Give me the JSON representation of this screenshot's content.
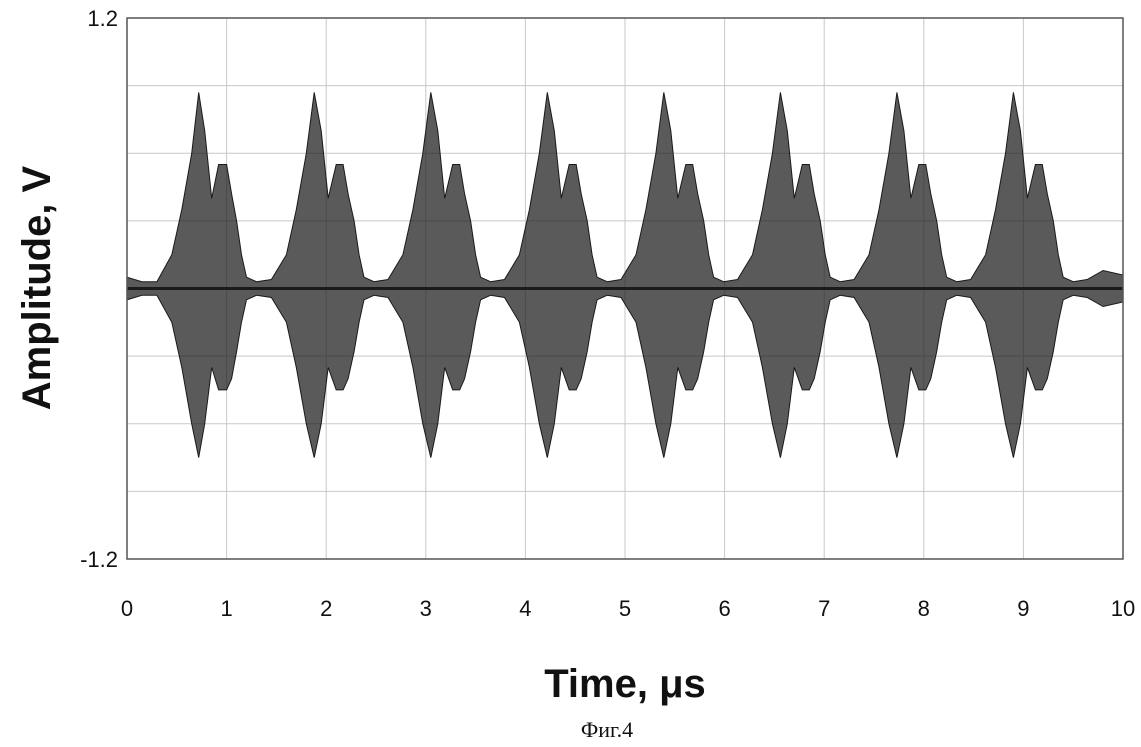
{
  "chart_data": {
    "type": "line",
    "xlabel": "Time, μs",
    "ylabel": "Amplitude, V",
    "xlim": [
      0,
      10
    ],
    "ylim": [
      -1.2,
      1.2
    ],
    "x_ticks": [
      "0",
      "1",
      "2",
      "3",
      "4",
      "5",
      "6",
      "7",
      "8",
      "9",
      "10"
    ],
    "y_ticks": [
      "1.2",
      "-1.2"
    ],
    "grid": true,
    "series": [
      {
        "color": "#1a1a1a",
        "envelope": {
          "x": [
            0.0,
            0.15,
            0.3,
            0.45,
            0.55,
            0.65,
            0.72,
            0.78,
            0.85,
            0.92,
            1.0,
            1.05,
            1.1,
            1.15,
            1.2,
            1.3,
            1.45,
            1.6,
            1.7,
            1.8,
            1.88,
            1.95,
            2.02,
            2.1,
            2.17,
            2.22,
            2.28,
            2.33,
            2.38,
            2.48,
            2.62,
            2.77,
            2.87,
            2.97,
            3.05,
            3.12,
            3.19,
            3.27,
            3.34,
            3.39,
            3.45,
            3.5,
            3.55,
            3.65,
            3.79,
            3.94,
            4.04,
            4.14,
            4.22,
            4.29,
            4.36,
            4.44,
            4.51,
            4.56,
            4.62,
            4.67,
            4.72,
            4.82,
            4.96,
            5.11,
            5.21,
            5.31,
            5.39,
            5.46,
            5.53,
            5.61,
            5.68,
            5.73,
            5.79,
            5.84,
            5.89,
            5.99,
            6.13,
            6.28,
            6.38,
            6.48,
            6.56,
            6.63,
            6.7,
            6.78,
            6.85,
            6.9,
            6.96,
            7.01,
            7.06,
            7.16,
            7.3,
            7.45,
            7.55,
            7.65,
            7.73,
            7.8,
            7.87,
            7.95,
            8.02,
            8.07,
            8.13,
            8.18,
            8.23,
            8.33,
            8.47,
            8.62,
            8.72,
            8.82,
            8.9,
            8.97,
            9.04,
            9.12,
            9.19,
            9.24,
            9.3,
            9.35,
            9.4,
            9.5,
            9.64,
            9.8,
            10.0
          ],
          "upper": [
            0.05,
            0.03,
            0.03,
            0.15,
            0.35,
            0.6,
            0.87,
            0.7,
            0.4,
            0.55,
            0.55,
            0.42,
            0.3,
            0.15,
            0.05,
            0.03,
            0.04,
            0.15,
            0.35,
            0.6,
            0.87,
            0.7,
            0.4,
            0.55,
            0.55,
            0.42,
            0.3,
            0.15,
            0.05,
            0.03,
            0.04,
            0.15,
            0.35,
            0.6,
            0.87,
            0.7,
            0.4,
            0.55,
            0.55,
            0.42,
            0.3,
            0.15,
            0.05,
            0.03,
            0.04,
            0.15,
            0.35,
            0.6,
            0.87,
            0.7,
            0.4,
            0.55,
            0.55,
            0.42,
            0.3,
            0.15,
            0.05,
            0.03,
            0.04,
            0.15,
            0.35,
            0.6,
            0.87,
            0.7,
            0.4,
            0.55,
            0.55,
            0.42,
            0.3,
            0.15,
            0.05,
            0.03,
            0.04,
            0.15,
            0.35,
            0.6,
            0.87,
            0.7,
            0.4,
            0.55,
            0.55,
            0.42,
            0.3,
            0.15,
            0.05,
            0.03,
            0.04,
            0.15,
            0.35,
            0.6,
            0.87,
            0.7,
            0.4,
            0.55,
            0.55,
            0.42,
            0.3,
            0.15,
            0.05,
            0.03,
            0.04,
            0.15,
            0.35,
            0.6,
            0.87,
            0.7,
            0.4,
            0.55,
            0.55,
            0.42,
            0.3,
            0.15,
            0.05,
            0.03,
            0.04,
            0.08,
            0.06
          ],
          "lower": [
            -0.05,
            -0.03,
            -0.03,
            -0.15,
            -0.35,
            -0.6,
            -0.75,
            -0.6,
            -0.35,
            -0.45,
            -0.45,
            -0.4,
            -0.28,
            -0.15,
            -0.05,
            -0.03,
            -0.04,
            -0.15,
            -0.35,
            -0.6,
            -0.75,
            -0.6,
            -0.35,
            -0.45,
            -0.45,
            -0.4,
            -0.28,
            -0.15,
            -0.05,
            -0.03,
            -0.04,
            -0.15,
            -0.35,
            -0.6,
            -0.75,
            -0.6,
            -0.35,
            -0.45,
            -0.45,
            -0.4,
            -0.28,
            -0.15,
            -0.05,
            -0.03,
            -0.04,
            -0.15,
            -0.35,
            -0.6,
            -0.75,
            -0.6,
            -0.35,
            -0.45,
            -0.45,
            -0.4,
            -0.28,
            -0.15,
            -0.05,
            -0.03,
            -0.04,
            -0.15,
            -0.35,
            -0.6,
            -0.75,
            -0.6,
            -0.35,
            -0.45,
            -0.45,
            -0.4,
            -0.28,
            -0.15,
            -0.05,
            -0.03,
            -0.04,
            -0.15,
            -0.35,
            -0.6,
            -0.75,
            -0.6,
            -0.35,
            -0.45,
            -0.45,
            -0.4,
            -0.28,
            -0.15,
            -0.05,
            -0.03,
            -0.04,
            -0.15,
            -0.35,
            -0.6,
            -0.75,
            -0.6,
            -0.35,
            -0.45,
            -0.45,
            -0.4,
            -0.28,
            -0.15,
            -0.05,
            -0.03,
            -0.04,
            -0.15,
            -0.35,
            -0.6,
            -0.75,
            -0.6,
            -0.35,
            -0.45,
            -0.45,
            -0.4,
            -0.28,
            -0.15,
            -0.05,
            -0.03,
            -0.04,
            -0.08,
            -0.06
          ]
        }
      }
    ]
  },
  "caption": "Фиг.4"
}
